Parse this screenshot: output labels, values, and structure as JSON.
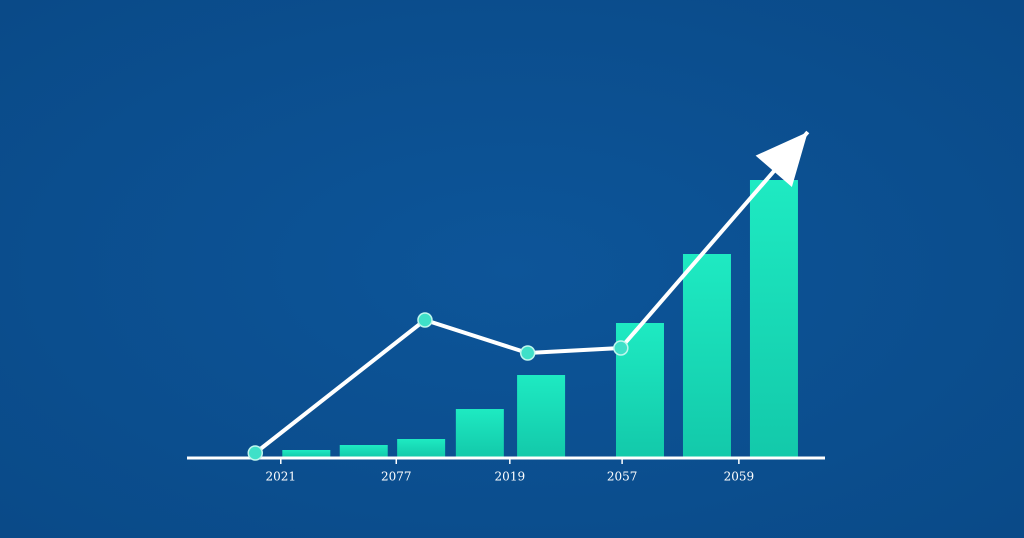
{
  "chart_data": {
    "type": "bar",
    "xlim": [
      0,
      100
    ],
    "xticks": [
      {
        "value": 14.7,
        "label": "2021"
      },
      {
        "value": 32.8,
        "label": "2077"
      },
      {
        "value": 50.6,
        "label": "2019"
      },
      {
        "value": 68.2,
        "label": "2057"
      },
      {
        "value": 86.5,
        "label": "2059"
      }
    ],
    "ylim": [
      0,
      330
    ],
    "bars": {
      "x": [
        18.7,
        27.7,
        36.7,
        45.9,
        55.5,
        71,
        81.5,
        92
      ],
      "values": [
        7,
        12,
        18,
        48,
        82,
        134,
        203,
        277
      ],
      "color": "#19e0bb"
    },
    "line": {
      "x": [
        10.7,
        37.3,
        53.4,
        68,
        97.3
      ],
      "values": [
        4,
        137,
        104,
        109,
        325
      ],
      "color": "#ffffff",
      "marker_color": "#3fe0c8"
    }
  }
}
